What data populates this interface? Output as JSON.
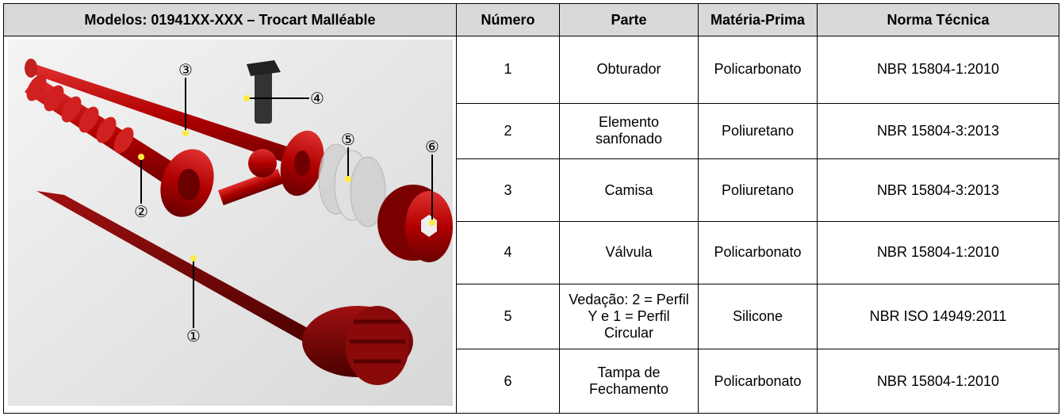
{
  "table": {
    "header": [
      "Modelos: 01941XX-XXX – Trocart Malléable",
      "Número",
      "Parte",
      "Matéria-Prima",
      "Norma Técnica"
    ],
    "rows": [
      [
        "1",
        "Obturador",
        "Policarbonato",
        "NBR 15804-1:2010"
      ],
      [
        "2",
        "Elemento sanfonado",
        "Poliuretano",
        "NBR 15804-3:2013"
      ],
      [
        "3",
        "Camisa",
        "Poliuretano",
        "NBR 15804-3:2013"
      ],
      [
        "4",
        "Válvula",
        "Policarbonato",
        "NBR 15804-1:2010"
      ],
      [
        "5",
        "Vedação: 2 = Perfil Y e 1 = Perfil Circular",
        "Silicone",
        "NBR ISO 14949:2011"
      ],
      [
        "6",
        "Tampa de Fechamento",
        "Policarbonato",
        "NBR 15804-1:2010"
      ]
    ]
  },
  "image": {
    "callouts": [
      "①",
      "②",
      "③",
      "④",
      "⑤",
      "⑥"
    ]
  }
}
